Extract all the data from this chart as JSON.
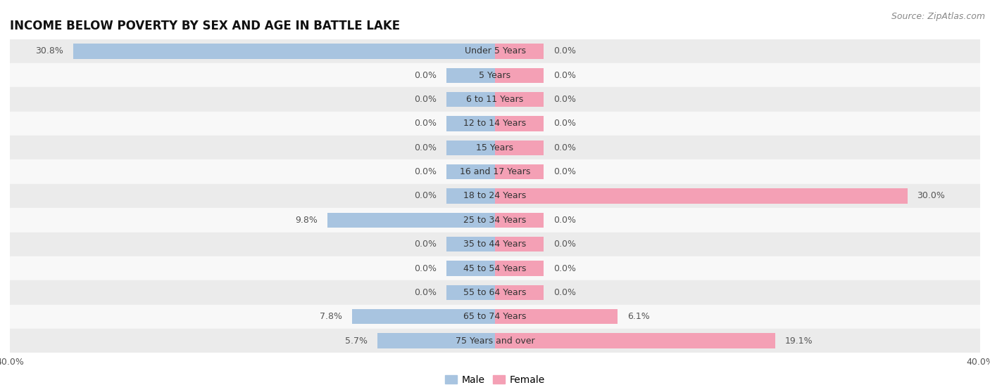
{
  "title": "INCOME BELOW POVERTY BY SEX AND AGE IN BATTLE LAKE",
  "source": "Source: ZipAtlas.com",
  "categories": [
    "Under 5 Years",
    "5 Years",
    "6 to 11 Years",
    "12 to 14 Years",
    "15 Years",
    "16 and 17 Years",
    "18 to 24 Years",
    "25 to 34 Years",
    "35 to 44 Years",
    "45 to 54 Years",
    "55 to 64 Years",
    "65 to 74 Years",
    "75 Years and over"
  ],
  "male": [
    30.8,
    0.0,
    0.0,
    0.0,
    0.0,
    0.0,
    0.0,
    9.8,
    0.0,
    0.0,
    0.0,
    7.8,
    5.7
  ],
  "female": [
    0.0,
    0.0,
    0.0,
    0.0,
    0.0,
    0.0,
    30.0,
    0.0,
    0.0,
    0.0,
    0.0,
    6.1,
    19.1
  ],
  "male_color": "#a8c4e0",
  "female_color": "#f4a0b5",
  "male_label": "Male",
  "female_label": "Female",
  "axis_max": 40.0,
  "bg_color": "#ffffff",
  "bar_height": 0.62,
  "center_bar_width": 8.0,
  "title_fontsize": 12,
  "source_fontsize": 9,
  "label_fontsize": 9,
  "category_fontsize": 9,
  "row_colors": [
    "#ebebeb",
    "#f8f8f8"
  ]
}
